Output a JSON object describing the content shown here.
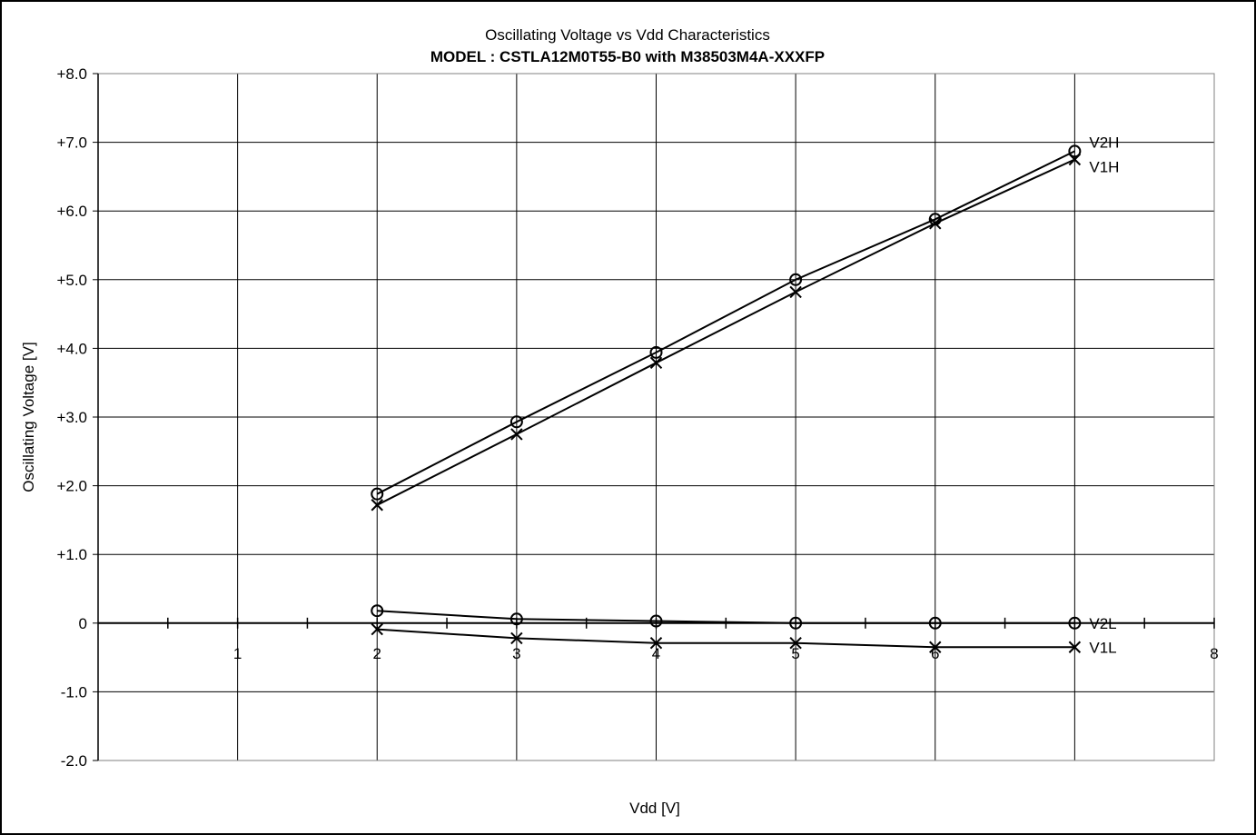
{
  "chart_data": {
    "type": "line",
    "title": "Oscillating Voltage vs Vdd Characteristics",
    "subtitle": "MODEL : CSTLA12M0T55-B0 with M38503M4A-XXXFP",
    "xlabel": "Vdd [V]",
    "ylabel": "Oscillating Voltage [V]",
    "xlim": [
      0,
      8
    ],
    "ylim": [
      -2.0,
      8.0
    ],
    "grid": true,
    "x_ticks": [
      1,
      2,
      3,
      4,
      5,
      6,
      7,
      8
    ],
    "x_tick_labels": [
      "1",
      "2",
      "3",
      "4",
      "5",
      "6",
      "",
      "8"
    ],
    "y_ticks": [
      8,
      7,
      6,
      5,
      4,
      3,
      2,
      1,
      0,
      -1,
      -2
    ],
    "y_tick_labels": [
      "+8.0",
      "+7.0",
      "+6.0",
      "+5.0",
      "+4.0",
      "+3.0",
      "+2.0",
      "+1.0",
      "0",
      "-1.0",
      "-2.0"
    ],
    "x": [
      2,
      3,
      4,
      5,
      6,
      7
    ],
    "series": [
      {
        "name": "V2H",
        "marker": "circle",
        "values": [
          1.88,
          2.93,
          3.94,
          5.0,
          5.88,
          6.87
        ]
      },
      {
        "name": "V1H",
        "marker": "cross",
        "values": [
          1.72,
          2.75,
          3.79,
          4.82,
          5.82,
          6.75
        ]
      },
      {
        "name": "V2L",
        "marker": "circle",
        "values": [
          0.18,
          0.06,
          0.03,
          0.0,
          0.0,
          0.0
        ]
      },
      {
        "name": "V1L",
        "marker": "cross",
        "values": [
          -0.09,
          -0.22,
          -0.29,
          -0.29,
          -0.35,
          -0.35
        ]
      }
    ]
  }
}
